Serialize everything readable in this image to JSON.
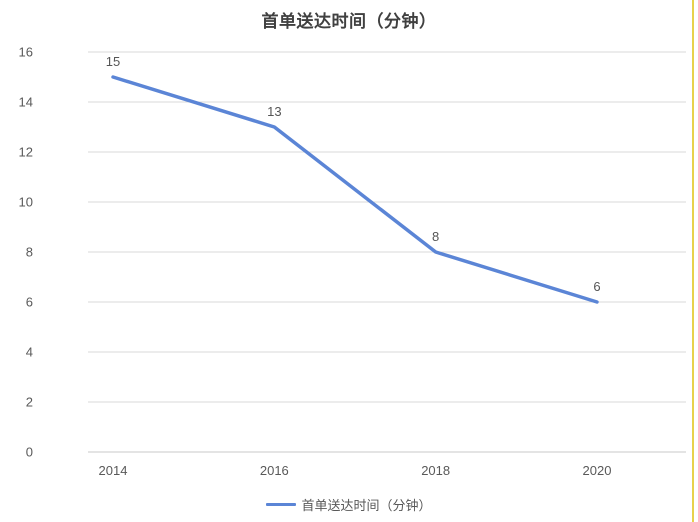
{
  "chart": {
    "title": "首单送达时间（分钟）"
  },
  "chart_data": {
    "type": "line",
    "title": "首单送达时间（分钟）",
    "categories": [
      "2014",
      "2016",
      "2018",
      "2020"
    ],
    "series": [
      {
        "name": "首单送达时间（分钟）",
        "values": [
          15,
          13,
          8,
          6
        ]
      }
    ],
    "data_labels": [
      15,
      13,
      8,
      6
    ],
    "ylim": [
      0,
      16
    ],
    "ytick_step": 2,
    "yticks": [
      0,
      2,
      4,
      6,
      8,
      10,
      12,
      14,
      16
    ],
    "grid": true,
    "legend_position": "bottom",
    "colors": {
      "line": "#5B85D6",
      "gridline": "#D9D9D9",
      "axis_line": "#C9C9C9",
      "tick_label": "#595959",
      "data_label": "#555555",
      "title": "#404040",
      "right_edge_highlight": "#E7D24B"
    }
  }
}
